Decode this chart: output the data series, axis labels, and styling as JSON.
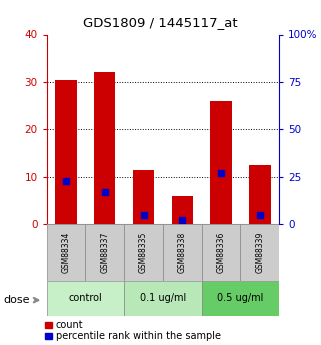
{
  "title": "GDS1809 / 1445117_at",
  "categories": [
    "GSM88334",
    "GSM88337",
    "GSM88335",
    "GSM88338",
    "GSM88336",
    "GSM88339"
  ],
  "bar_values": [
    30.5,
    32.0,
    11.5,
    6.0,
    26.0,
    12.5
  ],
  "percentile_values": [
    23,
    17,
    5,
    2,
    27,
    5
  ],
  "bar_color": "#cc0000",
  "percentile_color": "#0000cc",
  "ylim_left": [
    0,
    40
  ],
  "ylim_right": [
    0,
    100
  ],
  "yticks_left": [
    0,
    10,
    20,
    30,
    40
  ],
  "yticks_right": [
    0,
    25,
    50,
    75,
    100
  ],
  "ytick_labels_right": [
    "0",
    "25",
    "50",
    "75",
    "100%"
  ],
  "groups": [
    {
      "label": "control",
      "indices": [
        0,
        1
      ],
      "color": "#c8f0c8"
    },
    {
      "label": "0.1 ug/ml",
      "indices": [
        2,
        3
      ],
      "color": "#b8e8b8"
    },
    {
      "label": "0.5 ug/ml",
      "indices": [
        4,
        5
      ],
      "color": "#66cc66"
    }
  ],
  "dose_label": "dose",
  "legend_count_label": "count",
  "legend_percentile_label": "percentile rank within the sample",
  "background_color": "#ffffff",
  "plot_bg_color": "#ffffff",
  "axis_left_color": "#cc0000",
  "axis_right_color": "#0000cc",
  "bar_width": 0.55,
  "sample_bg_color": "#cccccc",
  "grid_yticks": [
    10,
    20,
    30
  ]
}
